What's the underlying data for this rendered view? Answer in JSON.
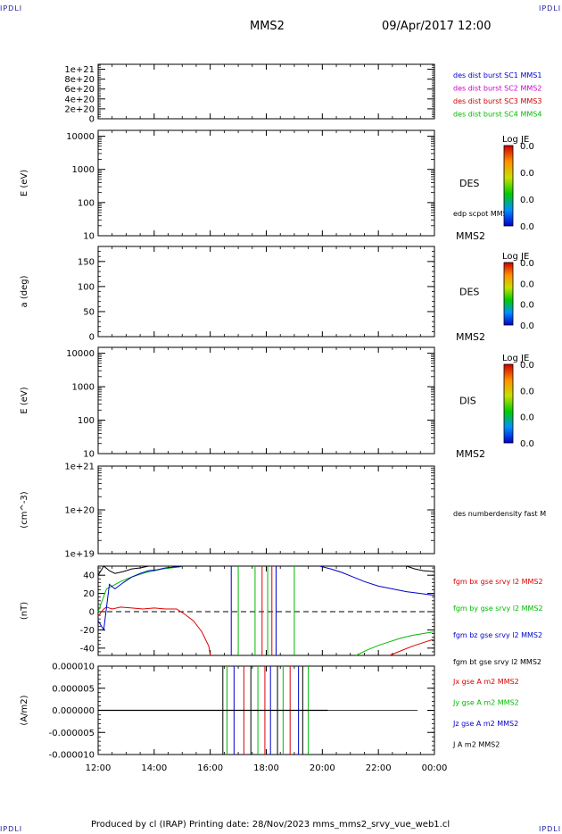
{
  "header": {
    "corner_tl": "IPDLI",
    "corner_tr": "IPDLI",
    "corner_bl": "IPDLI",
    "corner_br": "IPDLI",
    "spacecraft": "MMS2",
    "datetime": "09/Apr/2017 12:00"
  },
  "footer": {
    "text": "Produced by cl (IRAP)   Printing date: 28/Nov/2023   mms_mms2_srvy_vue_web1.cl"
  },
  "chart_data": [
    {
      "type": "line",
      "panel": "des-dist-burst",
      "ylabel": "",
      "ylim": [
        0,
        1.1e+21
      ],
      "yticks": [
        "0",
        "2e+20",
        "4e+20",
        "6e+20",
        "8e+20",
        "1e+21"
      ],
      "ytick_values": [
        0,
        2e+20,
        4e+20,
        6e+20,
        8e+20,
        1e+21
      ],
      "zero_line": true,
      "legend": [
        {
          "label": "des dist burst SC1 MMS1",
          "color": "#0000cc"
        },
        {
          "label": "des dist burst SC2 MMS2",
          "color": "#cc00cc"
        },
        {
          "label": "des dist burst SC3 MMS3",
          "color": "#cc0000"
        },
        {
          "label": "des dist burst SC4 MMS4",
          "color": "#00bb00"
        }
      ]
    },
    {
      "type": "heatmap",
      "panel": "des-energy",
      "ylabel": "E (eV)",
      "scale": "log",
      "ylim": [
        10,
        15000
      ],
      "yticks": [
        "10",
        "100",
        "1000",
        "10000"
      ],
      "ytick_values": [
        10,
        100,
        1000,
        10000
      ],
      "right_label": "DES",
      "overlay_label": "edp scpot MMS2",
      "sc_label": "MMS2",
      "colorbar": {
        "title": "Log JE",
        "ticks": [
          "0.0",
          "0.0",
          "0.0",
          "0.0"
        ]
      }
    },
    {
      "type": "heatmap",
      "panel": "des-pitch",
      "ylabel": "a (deg)",
      "ylim": [
        0,
        180
      ],
      "yticks": [
        "0",
        "50",
        "100",
        "150"
      ],
      "ytick_values": [
        0,
        50,
        100,
        150
      ],
      "right_label": "DES",
      "sc_label": "MMS2",
      "colorbar": {
        "title": "Log JE",
        "ticks": [
          "0.0",
          "0.0",
          "0.0",
          "0.0"
        ]
      }
    },
    {
      "type": "heatmap",
      "panel": "dis-energy",
      "ylabel": "E (eV)",
      "scale": "log",
      "ylim": [
        10,
        15000
      ],
      "yticks": [
        "10",
        "100",
        "1000",
        "10000"
      ],
      "ytick_values": [
        10,
        100,
        1000,
        10000
      ],
      "right_label": "DIS",
      "sc_label": "MMS2",
      "colorbar": {
        "title": "Log JE",
        "ticks": [
          "0.0",
          "0.0",
          "0.0",
          "0.0"
        ]
      }
    },
    {
      "type": "line",
      "panel": "density",
      "ylabel": "(cm^-3)",
      "scale": "log",
      "ylim": [
        1e+19,
        1e+21
      ],
      "yticks": [
        "1e+19",
        "1e+20",
        "1e+21"
      ],
      "ytick_values": [
        1e+19,
        1e+20,
        1e+21
      ],
      "legend": [
        {
          "label": "des numberdensity fast M",
          "color": "#000000"
        }
      ]
    },
    {
      "type": "line",
      "panel": "fgm",
      "ylabel": "(nT)",
      "ylim": [
        -48,
        50
      ],
      "yticks": [
        "-40",
        "-20",
        "0",
        "20",
        "40"
      ],
      "ytick_values": [
        -40,
        -20,
        0,
        20,
        40
      ],
      "zero_line": true,
      "legend": [
        {
          "label": "fgm bx gse srvy l2 MMS2",
          "color": "#dd0000"
        },
        {
          "label": "fgm by gse srvy l2 MMS2",
          "color": "#00bb00"
        },
        {
          "label": "fgm bz gse srvy l2 MMS2",
          "color": "#0000cc"
        },
        {
          "label": "fgm bt gse srvy l2 MMS2",
          "color": "#000000"
        }
      ],
      "series": [
        {
          "key": "bx",
          "color": "#dd0000",
          "x": [
            12.0,
            12.2,
            12.3,
            12.5,
            12.8,
            13.2,
            13.6,
            14.0,
            14.4,
            14.8,
            15.1,
            15.4,
            15.7,
            15.95,
            16.0
          ],
          "y": [
            -5,
            3,
            5,
            3,
            5,
            4,
            3,
            4,
            3,
            3,
            -3,
            -10,
            -22,
            -38,
            -48
          ]
        },
        {
          "key": "bx-late",
          "color": "#dd0000",
          "x": [
            22.4,
            22.8,
            23.2,
            23.6,
            24.0
          ],
          "y": [
            -48,
            -43,
            -38,
            -34,
            -30
          ]
        },
        {
          "key": "by",
          "color": "#00bb00",
          "x": [
            12.0,
            12.3,
            12.5,
            12.8,
            13.1,
            13.4,
            13.7,
            14.0,
            14.3,
            14.6,
            14.9,
            15.0
          ],
          "y": [
            0,
            25,
            28,
            33,
            37,
            40,
            43,
            45,
            47,
            48,
            49,
            50
          ]
        },
        {
          "key": "by-late",
          "color": "#00bb00",
          "x": [
            21.2,
            21.6,
            22.0,
            22.4,
            22.8,
            23.2,
            23.6,
            24.0
          ],
          "y": [
            -48,
            -42,
            -37,
            -33,
            -29,
            -26,
            -24,
            -22
          ]
        },
        {
          "key": "bz",
          "color": "#0000cc",
          "x": [
            12.0,
            12.2,
            12.4,
            12.6,
            12.9,
            13.2,
            13.5,
            13.8,
            14.1,
            14.4,
            14.7,
            15.0
          ],
          "y": [
            -10,
            -20,
            30,
            25,
            32,
            38,
            42,
            45,
            46,
            48,
            49,
            50
          ]
        },
        {
          "key": "bz-late",
          "color": "#0000cc",
          "x": [
            19.9,
            20.3,
            20.7,
            21.1,
            21.5,
            22.0,
            22.5,
            23.0,
            23.5,
            24.0
          ],
          "y": [
            50,
            47,
            43,
            38,
            33,
            28,
            25,
            22,
            20,
            18
          ]
        },
        {
          "key": "bt",
          "color": "#000000",
          "x": [
            12.0,
            12.2,
            12.4,
            12.6,
            12.9,
            13.2,
            13.5,
            13.8,
            14.1,
            14.5,
            14.8,
            15.0
          ],
          "y": [
            40,
            50,
            45,
            42,
            44,
            47,
            48,
            50,
            50,
            50,
            50,
            50
          ]
        },
        {
          "key": "bt-late",
          "color": "#000000",
          "x": [
            23.0,
            23.3,
            23.6,
            24.0
          ],
          "y": [
            50,
            47,
            45,
            44
          ]
        }
      ],
      "spikes": [
        {
          "x": 16.75,
          "color": "#0000cc"
        },
        {
          "x": 17.0,
          "color": "#00bb00"
        },
        {
          "x": 17.6,
          "color": "#00bb00"
        },
        {
          "x": 17.85,
          "color": "#dd0000"
        },
        {
          "x": 18.05,
          "color": "#00bb00"
        },
        {
          "x": 18.2,
          "color": "#dd0000"
        },
        {
          "x": 18.35,
          "color": "#0000cc"
        },
        {
          "x": 19.0,
          "color": "#00bb00"
        }
      ]
    },
    {
      "type": "line",
      "panel": "curlometer",
      "ylabel": "(A/m2)",
      "ylim": [
        -1e-05,
        1e-05
      ],
      "yticks": [
        "-0.000010",
        "-0.000005",
        "0.000000",
        "0.000005",
        "0.000010"
      ],
      "ytick_values": [
        -1e-05,
        -5e-06,
        0,
        5e-06,
        1e-05
      ],
      "xticks": [
        "12:00",
        "14:00",
        "16:00",
        "18:00",
        "20:00",
        "22:00",
        "00:00"
      ],
      "xtick_values": [
        12,
        14,
        16,
        18,
        20,
        22,
        24
      ],
      "zero_line": false,
      "legend": [
        {
          "label": "Jx gse A m2 MMS2",
          "color": "#dd0000"
        },
        {
          "label": "Jy gse A m2 MMS2",
          "color": "#00bb00"
        },
        {
          "label": "Jz gse A m2 MMS2",
          "color": "#0000cc"
        },
        {
          "label": "J A m2 MMS2",
          "color": "#000000"
        }
      ],
      "spikes": [
        {
          "x": 16.45,
          "color": "#000000"
        },
        {
          "x": 16.6,
          "color": "#00bb00"
        },
        {
          "x": 16.85,
          "color": "#0000cc"
        },
        {
          "x": 17.2,
          "color": "#dd0000"
        },
        {
          "x": 17.45,
          "color": "#000000"
        },
        {
          "x": 17.7,
          "color": "#00bb00"
        },
        {
          "x": 17.95,
          "color": "#dd0000"
        },
        {
          "x": 18.15,
          "color": "#0000cc"
        },
        {
          "x": 18.4,
          "color": "#000000"
        },
        {
          "x": 18.6,
          "color": "#00bb00"
        },
        {
          "x": 18.85,
          "color": "#dd0000"
        },
        {
          "x": 19.15,
          "color": "#0000cc"
        },
        {
          "x": 19.3,
          "color": "#000000"
        },
        {
          "x": 19.5,
          "color": "#00bb00"
        }
      ]
    }
  ]
}
